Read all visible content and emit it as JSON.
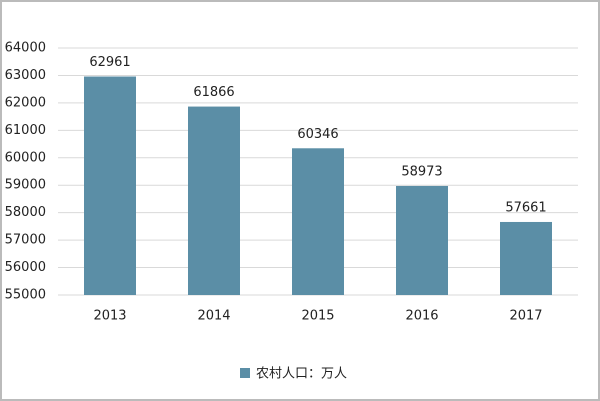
{
  "chart_data": {
    "type": "bar",
    "categories": [
      "2013",
      "2014",
      "2015",
      "2016",
      "2017"
    ],
    "series": [
      {
        "name": "农村人口：万人",
        "color": "#5b8ea6",
        "values": [
          62961,
          61866,
          60346,
          58973,
          57661
        ]
      }
    ],
    "ylim": [
      55000,
      64000
    ],
    "yticks": [
      55000,
      56000,
      57000,
      58000,
      59000,
      60000,
      61000,
      62000,
      63000,
      64000
    ],
    "grid": true
  }
}
